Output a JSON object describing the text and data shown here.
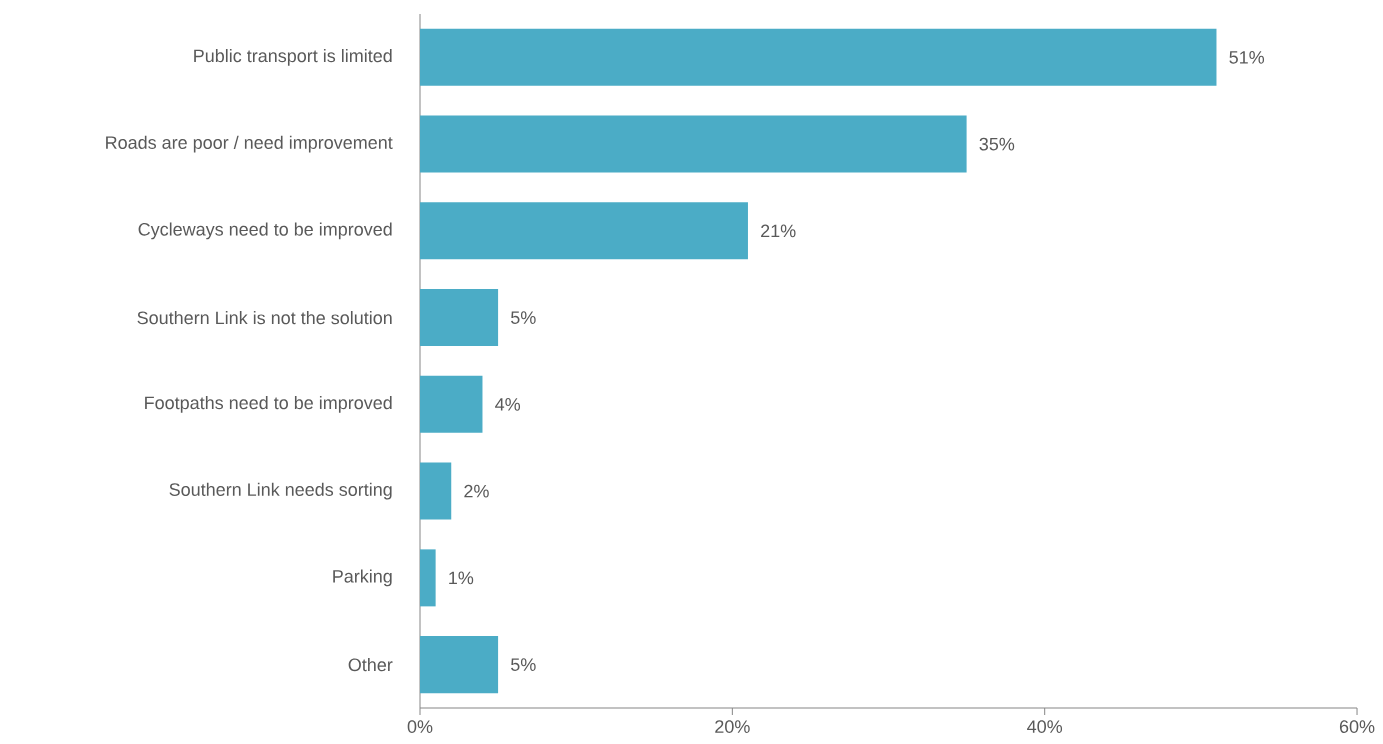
{
  "chart_data": {
    "type": "bar",
    "orientation": "horizontal",
    "categories": [
      "Public transport is limited",
      "Roads are poor / need improvement",
      "Cycleways need to be improved",
      "Southern Link is not the solution",
      "Footpaths need to be improved",
      "Southern Link needs sorting",
      "Parking",
      "Other"
    ],
    "values": [
      51,
      35,
      21,
      5,
      4,
      2,
      1,
      5
    ],
    "value_labels": [
      "51%",
      "35%",
      "21%",
      "5%",
      "4%",
      "2%",
      "1%",
      "5%"
    ],
    "color": "#4bacc6",
    "xlim": [
      0,
      60
    ],
    "xticks": [
      {
        "value": 0,
        "label": "0%"
      },
      {
        "value": 20,
        "label": "20%"
      },
      {
        "value": 40,
        "label": "40%"
      },
      {
        "value": 60,
        "label": "60%"
      }
    ],
    "grid": false
  }
}
